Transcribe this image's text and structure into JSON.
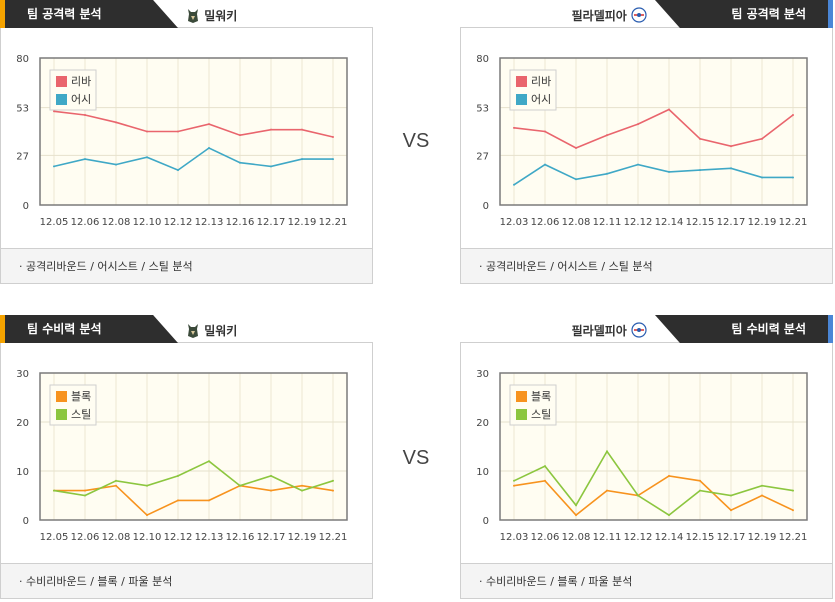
{
  "vs_label": "VS",
  "panels": [
    {
      "side": "left",
      "tab": "팀 공격력 분석",
      "team": "밀워키",
      "footer": "· 공격리바운드 / 어시스트 / 스틸 분석",
      "logo_icon": "bucks-logo-icon",
      "chart_data": {
        "type": "line",
        "title": "팀 공격력 분석 - 밀워키",
        "categories": [
          "12.05",
          "12.06",
          "12.08",
          "12.10",
          "12.12",
          "12.13",
          "12.16",
          "12.17",
          "12.19",
          "12.21"
        ],
        "yticks": [
          0,
          27,
          53,
          80
        ],
        "ylim": [
          0,
          80
        ],
        "series": [
          {
            "name": "리바",
            "color": "#e9656d",
            "values": [
              51,
              49,
              45,
              40,
              40,
              44,
              38,
              41,
              41,
              37
            ]
          },
          {
            "name": "어시",
            "color": "#3fa8c6",
            "values": [
              21,
              25,
              22,
              26,
              19,
              31,
              23,
              21,
              25,
              25
            ]
          }
        ]
      }
    },
    {
      "side": "right",
      "tab": "팀 공격력 분석",
      "team": "필라델피아",
      "footer": "· 공격리바운드 / 어시스트 / 스틸 분석",
      "logo_icon": "76ers-logo-icon",
      "chart_data": {
        "type": "line",
        "title": "팀 공격력 분석 - 필라델피아",
        "categories": [
          "12.03",
          "12.06",
          "12.08",
          "12.11",
          "12.12",
          "12.14",
          "12.15",
          "12.17",
          "12.19",
          "12.21"
        ],
        "yticks": [
          0,
          27,
          53,
          80
        ],
        "ylim": [
          0,
          80
        ],
        "series": [
          {
            "name": "리바",
            "color": "#e9656d",
            "values": [
              42,
              40,
              31,
              38,
              44,
              52,
              36,
              32,
              36,
              49
            ]
          },
          {
            "name": "어시",
            "color": "#3fa8c6",
            "values": [
              11,
              22,
              14,
              17,
              22,
              18,
              19,
              20,
              15,
              15
            ]
          }
        ]
      }
    },
    {
      "side": "left",
      "tab": "팀 수비력 분석",
      "team": "밀워키",
      "footer": "· 수비리바운드 / 블록 / 파울 분석",
      "logo_icon": "bucks-logo-icon",
      "chart_data": {
        "type": "line",
        "title": "팀 수비력 분석 - 밀워키",
        "categories": [
          "12.05",
          "12.06",
          "12.08",
          "12.10",
          "12.12",
          "12.13",
          "12.16",
          "12.17",
          "12.19",
          "12.21"
        ],
        "yticks": [
          0,
          10,
          20,
          30
        ],
        "ylim": [
          0,
          30
        ],
        "series": [
          {
            "name": "블록",
            "color": "#f7931e",
            "values": [
              6,
              6,
              7,
              1,
              4,
              4,
              7,
              6,
              7,
              6
            ]
          },
          {
            "name": "스틸",
            "color": "#8cc63f",
            "values": [
              6,
              5,
              8,
              7,
              9,
              12,
              7,
              9,
              6,
              8
            ]
          }
        ]
      }
    },
    {
      "side": "right",
      "tab": "팀 수비력 분석",
      "team": "필라델피아",
      "footer": "· 수비리바운드 / 블록 / 파울 분석",
      "logo_icon": "76ers-logo-icon",
      "chart_data": {
        "type": "line",
        "title": "팀 수비력 분석 - 필라델피아",
        "categories": [
          "12.03",
          "12.06",
          "12.08",
          "12.11",
          "12.12",
          "12.14",
          "12.15",
          "12.17",
          "12.19",
          "12.21"
        ],
        "yticks": [
          0,
          10,
          20,
          30
        ],
        "ylim": [
          0,
          30
        ],
        "series": [
          {
            "name": "블록",
            "color": "#f7931e",
            "values": [
              7,
              8,
              1,
              6,
              5,
              9,
              8,
              2,
              5,
              2
            ]
          },
          {
            "name": "스틸",
            "color": "#8cc63f",
            "values": [
              8,
              11,
              3,
              14,
              5,
              1,
              6,
              5,
              7,
              6
            ]
          }
        ]
      }
    }
  ]
}
